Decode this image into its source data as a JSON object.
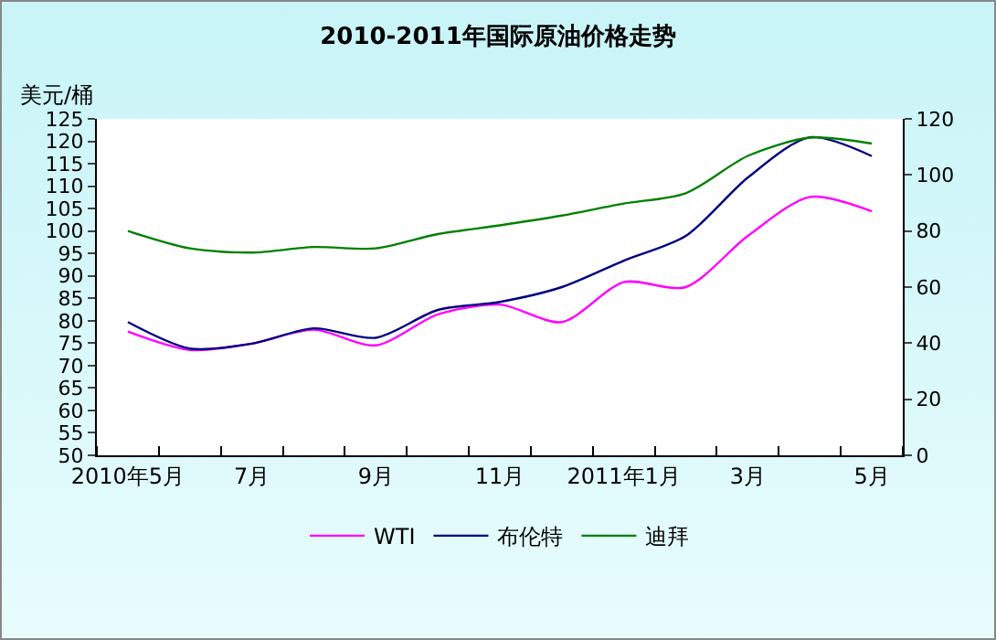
{
  "chart_data": {
    "type": "line",
    "title": "2010-2011年国际原油价格走势",
    "ylabel": "美元/桶",
    "categories": [
      "2010年5月",
      null,
      "7月",
      null,
      "9月",
      null,
      "11月",
      null,
      "2011年1月",
      null,
      "3月",
      null,
      "5月"
    ],
    "series": [
      {
        "name": "WTI",
        "color": "#ff00ff",
        "values": [
          77.6,
          73.5,
          74.9,
          78.0,
          74.5,
          81.4,
          83.6,
          79.7,
          88.6,
          87.5,
          98.9,
          107.6,
          104.4
        ]
      },
      {
        "name": "布伦特",
        "color": "#000080",
        "values": [
          79.7,
          73.8,
          74.9,
          78.3,
          76.2,
          82.4,
          84.2,
          87.5,
          93.4,
          98.9,
          111.9,
          120.9,
          116.7
        ]
      },
      {
        "name": "迪拜",
        "color": "#008000",
        "axis": "y2",
        "values": [
          80.0,
          73.8,
          72.3,
          74.3,
          73.8,
          78.9,
          82.0,
          85.5,
          89.8,
          93.5,
          106.8,
          113.3,
          111.2
        ]
      }
    ],
    "ylim": [
      50,
      125
    ],
    "yticks": [
      50,
      55,
      60,
      65,
      70,
      75,
      80,
      85,
      90,
      95,
      100,
      105,
      110,
      115,
      120,
      125
    ],
    "y2lim": [
      0,
      120
    ],
    "y2ticks": [
      0,
      20,
      40,
      60,
      80,
      100,
      120
    ],
    "grid": false,
    "legend": "bottom",
    "marker": "none",
    "line_style": "solid"
  }
}
